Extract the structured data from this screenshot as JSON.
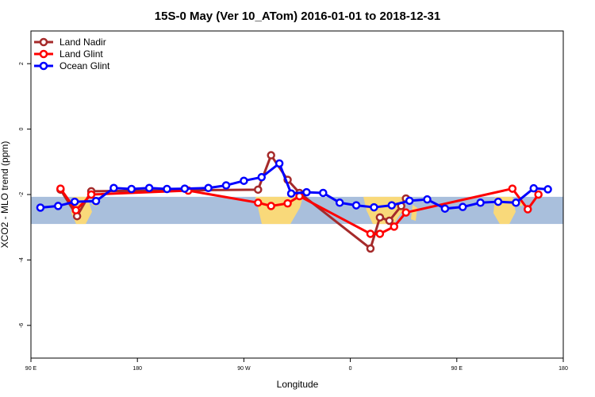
{
  "chart_data": {
    "type": "line",
    "title": "15S-0 May (Ver 10_ATom)   2016-01-01 to 2018-12-31",
    "xlabel": "Longitude",
    "ylabel": "XCO2 - MLO trend (ppm)",
    "xlim": [
      90,
      540
    ],
    "ylim": [
      -7,
      3
    ],
    "x_ticks": [
      {
        "value": 90,
        "label": "90 E"
      },
      {
        "value": 180,
        "label": "180"
      },
      {
        "value": 270,
        "label": "90 W"
      },
      {
        "value": 360,
        "label": "0"
      },
      {
        "value": 450,
        "label": "90 E"
      },
      {
        "value": 540,
        "label": "180"
      }
    ],
    "y_ticks": [
      {
        "value": 2,
        "label": "2"
      },
      {
        "value": 0,
        "label": "0"
      },
      {
        "value": -2,
        "label": "-2"
      },
      {
        "value": -4,
        "label": "-4"
      },
      {
        "value": -6,
        "label": "-6"
      }
    ],
    "legend_position": "top-left",
    "latitude_band": {
      "ymin": -2.9,
      "ymax": -2.07,
      "ocean_color": "#a9bfdc",
      "land_color": "#f9d97a"
    },
    "series": [
      {
        "name": "Land Nadir",
        "color": "#a52a2a",
        "x": [
          115,
          129,
          141,
          282,
          293,
          307,
          317,
          377,
          385,
          393,
          403,
          407
        ],
        "y": [
          -1.85,
          -2.66,
          -1.9,
          -1.85,
          -0.8,
          -1.55,
          -1.95,
          -3.65,
          -2.7,
          -2.8,
          -2.35,
          -2.12
        ]
      },
      {
        "name": "Land Glint",
        "color": "#ff0000",
        "x": [
          115,
          128,
          141,
          223,
          282,
          293,
          307,
          317,
          377,
          385,
          397,
          407,
          497,
          510,
          519
        ],
        "y": [
          -1.82,
          -2.48,
          -2.0,
          -1.88,
          -2.25,
          -2.35,
          -2.27,
          -2.05,
          -3.2,
          -3.2,
          -2.98,
          -2.55,
          -1.82,
          -2.45,
          -2.0
        ]
      },
      {
        "name": "Ocean Glint",
        "color": "#0000ff",
        "x": [
          98,
          113,
          127,
          145,
          160,
          175,
          190,
          205,
          220,
          240,
          255,
          270,
          285,
          300,
          310,
          323,
          337,
          351,
          365,
          380,
          395,
          410,
          425,
          440,
          455,
          470,
          485,
          500,
          515,
          527
        ],
        "y": [
          -2.4,
          -2.35,
          -2.22,
          -2.2,
          -1.8,
          -1.83,
          -1.8,
          -1.83,
          -1.82,
          -1.8,
          -1.72,
          -1.58,
          -1.47,
          -1.05,
          -1.97,
          -1.93,
          -1.95,
          -2.25,
          -2.33,
          -2.39,
          -2.33,
          -2.19,
          -2.15,
          -2.43,
          -2.38,
          -2.25,
          -2.22,
          -2.25,
          -1.81,
          -1.84
        ]
      }
    ]
  }
}
